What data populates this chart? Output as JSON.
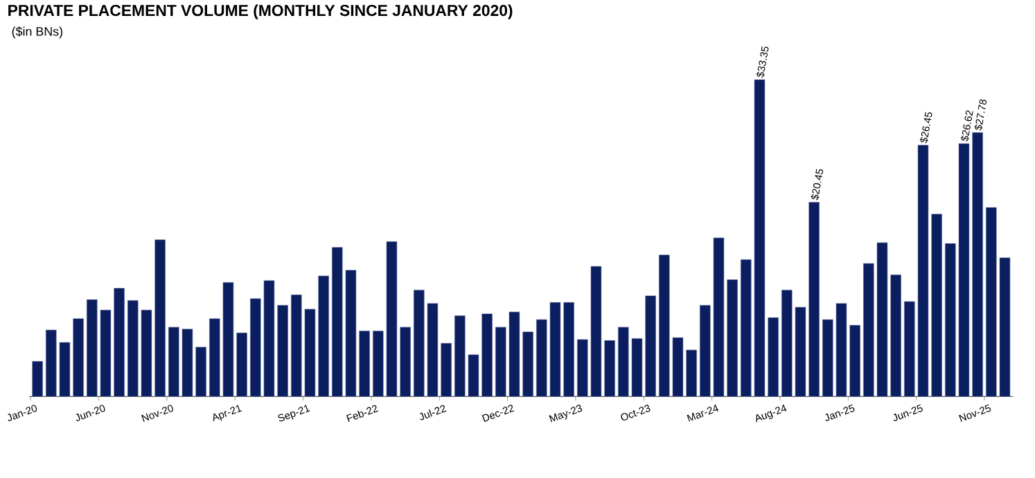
{
  "chart_data": {
    "type": "bar",
    "title": "PRIVATE PLACEMENT VOLUME (MONTHLY SINCE JANUARY 2020)",
    "subtitle": "($in BNs)",
    "categories": [
      "Jan-20",
      null,
      null,
      null,
      null,
      "Jun-20",
      null,
      null,
      null,
      null,
      "Nov-20",
      null,
      null,
      null,
      null,
      "Apr-21",
      null,
      null,
      null,
      null,
      "Sep-21",
      null,
      null,
      null,
      null,
      "Feb-22",
      null,
      null,
      null,
      null,
      "Jul-22",
      null,
      null,
      null,
      null,
      "Dec-22",
      null,
      null,
      null,
      null,
      "May-23",
      null,
      null,
      null,
      null,
      "Oct-23",
      null,
      null,
      null,
      null,
      "Mar-24",
      null,
      null,
      null,
      null,
      "Aug-24",
      null,
      null,
      null,
      null,
      "Jan-25",
      null,
      null,
      null,
      null,
      "Jun-25",
      null,
      null,
      null,
      null,
      "Nov-25",
      null
    ],
    "values": [
      3.7,
      7.0,
      5.7,
      8.2,
      10.2,
      9.1,
      11.4,
      10.1,
      9.1,
      16.5,
      7.3,
      7.1,
      5.2,
      8.2,
      12.0,
      6.7,
      10.3,
      12.2,
      9.6,
      10.7,
      9.2,
      12.7,
      15.7,
      13.3,
      6.9,
      6.9,
      16.3,
      7.3,
      11.2,
      9.8,
      5.6,
      8.5,
      4.4,
      8.7,
      7.3,
      8.9,
      6.8,
      8.1,
      9.9,
      9.9,
      6.0,
      13.7,
      5.9,
      7.3,
      6.1,
      10.6,
      14.9,
      6.2,
      4.9,
      9.6,
      16.7,
      12.3,
      14.4,
      33.35,
      8.3,
      11.2,
      9.4,
      20.45,
      8.1,
      9.8,
      7.5,
      14.0,
      16.2,
      12.8,
      10.0,
      26.45,
      19.2,
      16.1,
      26.62,
      27.78,
      19.9,
      14.6
    ],
    "value_labels": [
      null,
      null,
      null,
      null,
      null,
      null,
      null,
      null,
      null,
      null,
      null,
      null,
      null,
      null,
      null,
      null,
      null,
      null,
      null,
      null,
      null,
      null,
      null,
      null,
      null,
      null,
      null,
      null,
      null,
      null,
      null,
      null,
      null,
      null,
      null,
      null,
      null,
      null,
      null,
      null,
      null,
      null,
      null,
      null,
      null,
      null,
      null,
      null,
      null,
      null,
      null,
      null,
      null,
      "$33.35",
      null,
      null,
      null,
      "$20.45",
      null,
      null,
      null,
      null,
      null,
      null,
      null,
      "$26.45",
      null,
      null,
      "$26.62",
      "$27.78",
      null,
      null
    ],
    "color": "#0b1f60"
  }
}
